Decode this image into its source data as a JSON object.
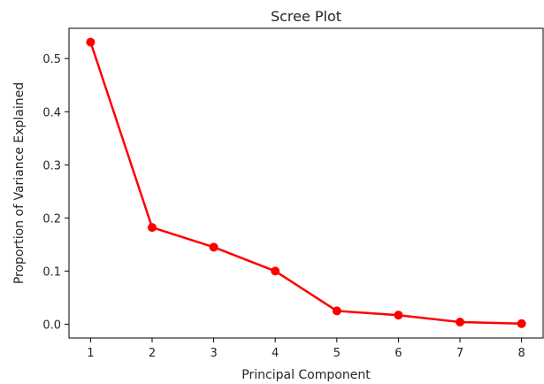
{
  "chart_data": {
    "type": "line",
    "title": "Scree Plot",
    "xlabel": "Principal Component",
    "ylabel": "Proportion of Variance Explained",
    "x": [
      1,
      2,
      3,
      4,
      5,
      6,
      7,
      8
    ],
    "series": [
      {
        "values": [
          0.531,
          0.182,
          0.145,
          0.1,
          0.025,
          0.017,
          0.004,
          0.001
        ]
      }
    ],
    "xticks": [
      1,
      2,
      3,
      4,
      5,
      6,
      7,
      8
    ],
    "yticks": [
      0.0,
      0.1,
      0.2,
      0.3,
      0.4,
      0.5
    ],
    "ytick_labels": [
      "0.0",
      "0.1",
      "0.2",
      "0.3",
      "0.4",
      "0.5"
    ],
    "xlim": [
      0.65,
      8.35
    ],
    "ylim": [
      -0.026,
      0.557
    ],
    "grid": false,
    "color": "#ff0000",
    "marker": "circle"
  }
}
